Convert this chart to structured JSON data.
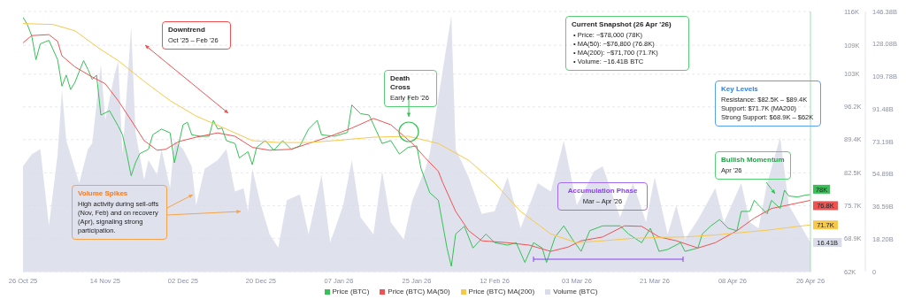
{
  "chart_data": {
    "type": "line",
    "xlim": [
      "2025-10-26",
      "2026-04-26"
    ],
    "xticks": [
      {
        "value": "2025-10-26",
        "label": "26 Oct 25"
      },
      {
        "value": "2025-11-14",
        "label": "14 Nov 25"
      },
      {
        "value": "2025-12-02",
        "label": "02 Dec 25"
      },
      {
        "value": "2025-12-20",
        "label": "20 Dec 25"
      },
      {
        "value": "2026-01-07",
        "label": "07 Jan 26"
      },
      {
        "value": "2026-01-25",
        "label": "25 Jan 26"
      },
      {
        "value": "2026-02-12",
        "label": "12 Feb 26"
      },
      {
        "value": "2026-03-03",
        "label": "03 Mar 26"
      },
      {
        "value": "2026-03-21",
        "label": "21 Mar 26"
      },
      {
        "value": "2026-04-08",
        "label": "08 Apr 26"
      },
      {
        "value": "2026-04-26",
        "label": "26 Apr 26"
      }
    ],
    "ylim": [
      62,
      116
    ],
    "yticks": [
      {
        "value": 62,
        "label": "62K"
      },
      {
        "value": 68.9,
        "label": "68.9K"
      },
      {
        "value": 75.7,
        "label": "75.7K"
      },
      {
        "value": 82.5,
        "label": "82.5K"
      },
      {
        "value": 89.4,
        "label": "89.4K"
      },
      {
        "value": 96.2,
        "label": "96.2K"
      },
      {
        "value": 103,
        "label": "103K"
      },
      {
        "value": 109,
        "label": "109K"
      },
      {
        "value": 116,
        "label": "116K"
      }
    ],
    "y2lim": [
      0,
      146.38
    ],
    "y2ticks": [
      0,
      {
        "value": 18.2,
        "label": "18.20B"
      },
      {
        "value": 36.59,
        "label": "36.59B"
      },
      {
        "value": 54.89,
        "label": "54.89B"
      },
      {
        "value": 73.19,
        "label": "73.19B"
      },
      {
        "value": 91.48,
        "label": "91.48B"
      },
      {
        "value": 109.78,
        "label": "109.78B"
      },
      {
        "value": 128.08,
        "label": "128.08B"
      },
      {
        "value": 146.38,
        "label": "146.38B"
      }
    ],
    "grid": "y",
    "legend": "bottom",
    "series": [
      {
        "name": "Price (BTC)",
        "color": "#35c155",
        "x": [
          "2025-10-26",
          "2025-10-27",
          "2025-10-28",
          "2025-10-29",
          "2025-10-30",
          "2025-11-01",
          "2025-11-03",
          "2025-11-04",
          "2025-11-05",
          "2025-11-06",
          "2025-11-07",
          "2025-11-09",
          "2025-11-10",
          "2025-11-11",
          "2025-11-12",
          "2025-11-13",
          "2025-11-15",
          "2025-11-17",
          "2025-11-18",
          "2025-11-19",
          "2025-11-20",
          "2025-11-21",
          "2025-11-22",
          "2025-11-24",
          "2025-11-25",
          "2025-11-27",
          "2025-11-29",
          "2025-11-30",
          "2025-12-02",
          "2025-12-03",
          "2025-12-04",
          "2025-12-06",
          "2025-12-08",
          "2025-12-09",
          "2025-12-10",
          "2025-12-11",
          "2025-12-12",
          "2025-12-14",
          "2025-12-15",
          "2025-12-17",
          "2025-12-18",
          "2025-12-19",
          "2025-12-21",
          "2025-12-23",
          "2025-12-25",
          "2025-12-27",
          "2025-12-29",
          "2025-12-31",
          "2026-01-02",
          "2026-01-03",
          "2026-01-06",
          "2026-01-09",
          "2026-01-10",
          "2026-01-12",
          "2026-01-14",
          "2026-01-17",
          "2026-01-19",
          "2026-01-21",
          "2026-01-23",
          "2026-01-25",
          "2026-01-26",
          "2026-01-28",
          "2026-01-30",
          "2026-02-01",
          "2026-02-02",
          "2026-02-03",
          "2026-02-05",
          "2026-02-07",
          "2026-02-10",
          "2026-02-12",
          "2026-02-15",
          "2026-02-17",
          "2026-02-19",
          "2026-02-21",
          "2026-02-23",
          "2026-02-24",
          "2026-02-26",
          "2026-02-28",
          "2026-03-02",
          "2026-03-04",
          "2026-03-06",
          "2026-03-09",
          "2026-03-11",
          "2026-03-13",
          "2026-03-15",
          "2026-03-18",
          "2026-03-20",
          "2026-03-21",
          "2026-03-22",
          "2026-03-24",
          "2026-03-27",
          "2026-03-28",
          "2026-03-31",
          "2026-04-01",
          "2026-04-03",
          "2026-04-05",
          "2026-04-07",
          "2026-04-09",
          "2026-04-10",
          "2026-04-12",
          "2026-04-13",
          "2026-04-14",
          "2026-04-16",
          "2026-04-17",
          "2026-04-19",
          "2026-04-20",
          "2026-04-21",
          "2026-04-23",
          "2026-04-25",
          "2026-04-26"
        ],
        "values": [
          114.8,
          113.3,
          111,
          106,
          109.3,
          110,
          106,
          100.5,
          102.8,
          99.8,
          101.3,
          105.8,
          104,
          101.9,
          102.8,
          94.5,
          95.4,
          92.2,
          90.4,
          86.4,
          81.9,
          84.6,
          86.5,
          87.4,
          90.4,
          91.6,
          90.8,
          84.6,
          92.5,
          93,
          90.4,
          90.1,
          90.1,
          93.4,
          91.6,
          91.8,
          89.2,
          88.6,
          85.6,
          86.9,
          84.2,
          87.8,
          89.2,
          87.2,
          89.2,
          87.4,
          88.1,
          91.6,
          93.4,
          90.4,
          90.1,
          90.9,
          96.6,
          94.8,
          94.5,
          88.6,
          89.2,
          86.4,
          87.8,
          88.1,
          83.4,
          78.4,
          76.8,
          66.9,
          63.1,
          69.8,
          71.4,
          66.9,
          69.8,
          68,
          67.5,
          68,
          63.9,
          68,
          66.9,
          63.9,
          69.2,
          71.5,
          68.7,
          66.2,
          70.5,
          71.5,
          71.5,
          71.5,
          69.8,
          68,
          71,
          68.7,
          66.2,
          66.6,
          68,
          66.2,
          66.9,
          69.8,
          71.5,
          72.8,
          71,
          70.5,
          74.5,
          74.5,
          76.8,
          75.8,
          74,
          76.8,
          75.1,
          78.9,
          77.7,
          77.5,
          77.9,
          78
        ],
        "value_labels": [
          null,
          null,
          null,
          null,
          null,
          null,
          null,
          null,
          null,
          null,
          null,
          null,
          null,
          null,
          null,
          null,
          null,
          null,
          null,
          null,
          null,
          null,
          null,
          null,
          null,
          null,
          null,
          null,
          null,
          null,
          null,
          null,
          null,
          null,
          null,
          null,
          null,
          null,
          null,
          null,
          null,
          null,
          null,
          null,
          null,
          null,
          null,
          null,
          null,
          null,
          null,
          null,
          null,
          null,
          null,
          null,
          null,
          null,
          null,
          null,
          null,
          null,
          null,
          null,
          null,
          null,
          null,
          null,
          null,
          null,
          null,
          null,
          null,
          null,
          null,
          null,
          null,
          null,
          null,
          null,
          null,
          null,
          null,
          null,
          null,
          null,
          null,
          null,
          null,
          null,
          null,
          null,
          null,
          null,
          null,
          null,
          null,
          null,
          null,
          null,
          null,
          null,
          null,
          null,
          null,
          null,
          null,
          null,
          null,
          "78K"
        ]
      },
      {
        "name": "Price (BTC) MA(50)",
        "color": "#f05252",
        "x": [
          "2025-10-26",
          "2025-10-28",
          "2025-11-01",
          "2025-11-03",
          "2025-11-04",
          "2025-11-07",
          "2025-11-11",
          "2025-11-14",
          "2025-11-17",
          "2025-11-20",
          "2025-11-23",
          "2025-11-26",
          "2025-11-28",
          "2025-12-01",
          "2025-12-05",
          "2025-12-10",
          "2025-12-14",
          "2025-12-18",
          "2025-12-22",
          "2025-12-27",
          "2025-12-31",
          "2026-01-05",
          "2026-01-10",
          "2026-01-15",
          "2026-01-19",
          "2026-01-24",
          "2026-01-27",
          "2026-01-30",
          "2026-01-31",
          "2026-02-03",
          "2026-02-06",
          "2026-02-09",
          "2026-02-15",
          "2026-02-20",
          "2026-02-25",
          "2026-03-01",
          "2026-03-04",
          "2026-03-09",
          "2026-03-14",
          "2026-03-18",
          "2026-03-22",
          "2026-03-26",
          "2026-03-31",
          "2026-04-04",
          "2026-04-09",
          "2026-04-13",
          "2026-04-17",
          "2026-04-26"
        ],
        "values": [
          109.5,
          111,
          111.2,
          109.8,
          106.8,
          104.5,
          102.4,
          101,
          97.5,
          93.4,
          89.2,
          87.2,
          87.4,
          89,
          89.9,
          90.8,
          90.1,
          87.8,
          87.2,
          87.4,
          88.6,
          90.1,
          91.8,
          93.8,
          92.5,
          88.6,
          85.6,
          82.8,
          80.5,
          74.5,
          70.5,
          68.4,
          68,
          67.5,
          66.2,
          67.1,
          68.4,
          69.2,
          71.5,
          71.4,
          69.2,
          68.4,
          66.9,
          68,
          70.5,
          73.1,
          75.1,
          76.8
        ],
        "value_labels": [
          null,
          null,
          null,
          null,
          null,
          null,
          null,
          null,
          null,
          null,
          null,
          null,
          null,
          null,
          null,
          null,
          null,
          null,
          null,
          null,
          null,
          null,
          null,
          null,
          null,
          null,
          null,
          null,
          null,
          null,
          null,
          null,
          null,
          null,
          null,
          null,
          null,
          null,
          null,
          null,
          null,
          null,
          null,
          null,
          null,
          null,
          null,
          "76.8K"
        ]
      },
      {
        "name": "Price (BTC) MA(200)",
        "color": "#f8c84a",
        "x": [
          "2025-10-26",
          "2025-11-02",
          "2025-11-07",
          "2025-11-13",
          "2025-11-17",
          "2025-11-23",
          "2025-11-29",
          "2025-12-05",
          "2025-12-12",
          "2025-12-18",
          "2025-12-24",
          "2025-12-31",
          "2026-01-06",
          "2026-01-15",
          "2026-01-23",
          "2026-01-30",
          "2026-02-06",
          "2026-02-12",
          "2026-02-18",
          "2026-02-25",
          "2026-03-03",
          "2026-03-09",
          "2026-03-16",
          "2026-03-22",
          "2026-03-28",
          "2026-04-04",
          "2026-04-10",
          "2026-04-16",
          "2026-04-26"
        ],
        "values": [
          113.5,
          113.3,
          112,
          108.1,
          105.8,
          101.5,
          97.5,
          94.3,
          91.6,
          89.2,
          88.8,
          88.8,
          89.2,
          89.9,
          90.1,
          88.6,
          85.1,
          80.4,
          74.5,
          69.8,
          68,
          68.4,
          68.9,
          69.1,
          69.2,
          69.6,
          70.1,
          70.6,
          71.7
        ],
        "value_labels": [
          null,
          null,
          null,
          null,
          null,
          null,
          null,
          null,
          null,
          null,
          null,
          null,
          null,
          null,
          null,
          null,
          null,
          null,
          null,
          null,
          null,
          null,
          null,
          null,
          null,
          null,
          null,
          null,
          "71.7K"
        ]
      },
      {
        "name": "Volume (BTC)",
        "type": "area",
        "axis": "y2",
        "color": "#d9dcea",
        "x": [
          "2025-10-26",
          "2025-10-28",
          "2025-10-30",
          "2025-11-01",
          "2025-11-03",
          "2025-11-04",
          "2025-11-05",
          "2025-11-08",
          "2025-11-10",
          "2025-11-11",
          "2025-11-13",
          "2025-11-14",
          "2025-11-16",
          "2025-11-17",
          "2025-11-18",
          "2025-11-20",
          "2025-11-21",
          "2025-11-23",
          "2025-11-24",
          "2025-11-26",
          "2025-11-27",
          "2025-11-29",
          "2025-11-30",
          "2025-12-02",
          "2025-12-04",
          "2025-12-05",
          "2025-12-07",
          "2025-12-10",
          "2025-12-12",
          "2025-12-14",
          "2025-12-16",
          "2025-12-17",
          "2025-12-18",
          "2025-12-20",
          "2025-12-22",
          "2025-12-24",
          "2025-12-26",
          "2025-12-29",
          "2025-12-31",
          "2026-01-03",
          "2026-01-05",
          "2026-01-08",
          "2026-01-10",
          "2026-01-12",
          "2026-01-15",
          "2026-01-17",
          "2026-01-19",
          "2026-01-22",
          "2026-01-24",
          "2026-01-27",
          "2026-01-28",
          "2026-01-30",
          "2026-02-02",
          "2026-02-03",
          "2026-02-06",
          "2026-02-09",
          "2026-02-12",
          "2026-02-15",
          "2026-02-18",
          "2026-02-22",
          "2026-02-25",
          "2026-02-28",
          "2026-03-03",
          "2026-03-07",
          "2026-03-09",
          "2026-03-13",
          "2026-03-16",
          "2026-03-19",
          "2026-03-21",
          "2026-03-24",
          "2026-03-26",
          "2026-03-28",
          "2026-03-31",
          "2026-04-04",
          "2026-04-06",
          "2026-04-10",
          "2026-04-12",
          "2026-04-14",
          "2026-04-16",
          "2026-04-19",
          "2026-04-21",
          "2026-04-26"
        ],
        "values": [
          59.3,
          66,
          68.9,
          25.8,
          66,
          102.4,
          73.7,
          49.8,
          68.9,
          72.2,
          116.7,
          85.2,
          109,
          118.6,
          66,
          137.8,
          78.5,
          51.7,
          62.7,
          54.5,
          68.9,
          46.9,
          73.7,
          68.9,
          59.3,
          37.3,
          57.9,
          62.7,
          68.9,
          45,
          46.9,
          34,
          57.9,
          37.3,
          21,
          13.4,
          40.2,
          43.5,
          21,
          54.5,
          16.3,
          37.3,
          62.7,
          30.6,
          21,
          56.5,
          27.7,
          18.2,
          40.2,
          57.9,
          66,
          97.6,
          144,
          68.9,
          53.1,
          32.5,
          34,
          53.1,
          24.4,
          49.8,
          45,
          73.7,
          37.3,
          56.5,
          59.3,
          30.6,
          49.8,
          27.7,
          53.1,
          21,
          37.3,
          18.2,
          29.2,
          46.9,
          27.7,
          49.8,
          27.7,
          24.4,
          49.8,
          75.6,
          37.3,
          16.41
        ],
        "value_labels": [
          null,
          null,
          null,
          null,
          null,
          null,
          null,
          null,
          null,
          null,
          null,
          null,
          null,
          null,
          null,
          null,
          null,
          null,
          null,
          null,
          null,
          null,
          null,
          null,
          null,
          null,
          null,
          null,
          null,
          null,
          null,
          null,
          null,
          null,
          null,
          null,
          null,
          null,
          null,
          null,
          null,
          null,
          null,
          null,
          null,
          null,
          null,
          null,
          null,
          null,
          null,
          null,
          null,
          null,
          null,
          null,
          null,
          null,
          null,
          null,
          null,
          null,
          null,
          null,
          null,
          null,
          null,
          null,
          null,
          null,
          null,
          null,
          null,
          null,
          null,
          null,
          null,
          null,
          null,
          null,
          null,
          "16.41B"
        ]
      }
    ],
    "annotations": [
      "Downtrend\nOct '25 – Feb '26",
      "Volume Spikes\nHigh activity during sell-offs (Nov, Feb) and on recovery (Apr), signaling strong participation.",
      "Death Cross\nEarly Feb '26",
      "Current Snapshot (26 Apr '26)\n• Price: ~$78,000 (78K)\n• MA(50): ~$76,800 (76.8K)\n• MA(200): ~$71,700 (71.7K)\n• Volume: ~16.41B BTC",
      "Key Levels\nResistance: $82.5K – $89.4K\nSupport: $71.7K (MA200)\nStrong Support: $68.9K – $62K",
      "Bullish Momentum\nApr '26",
      "Accumulation Phase\nMar – Apr '26"
    ]
  }
}
